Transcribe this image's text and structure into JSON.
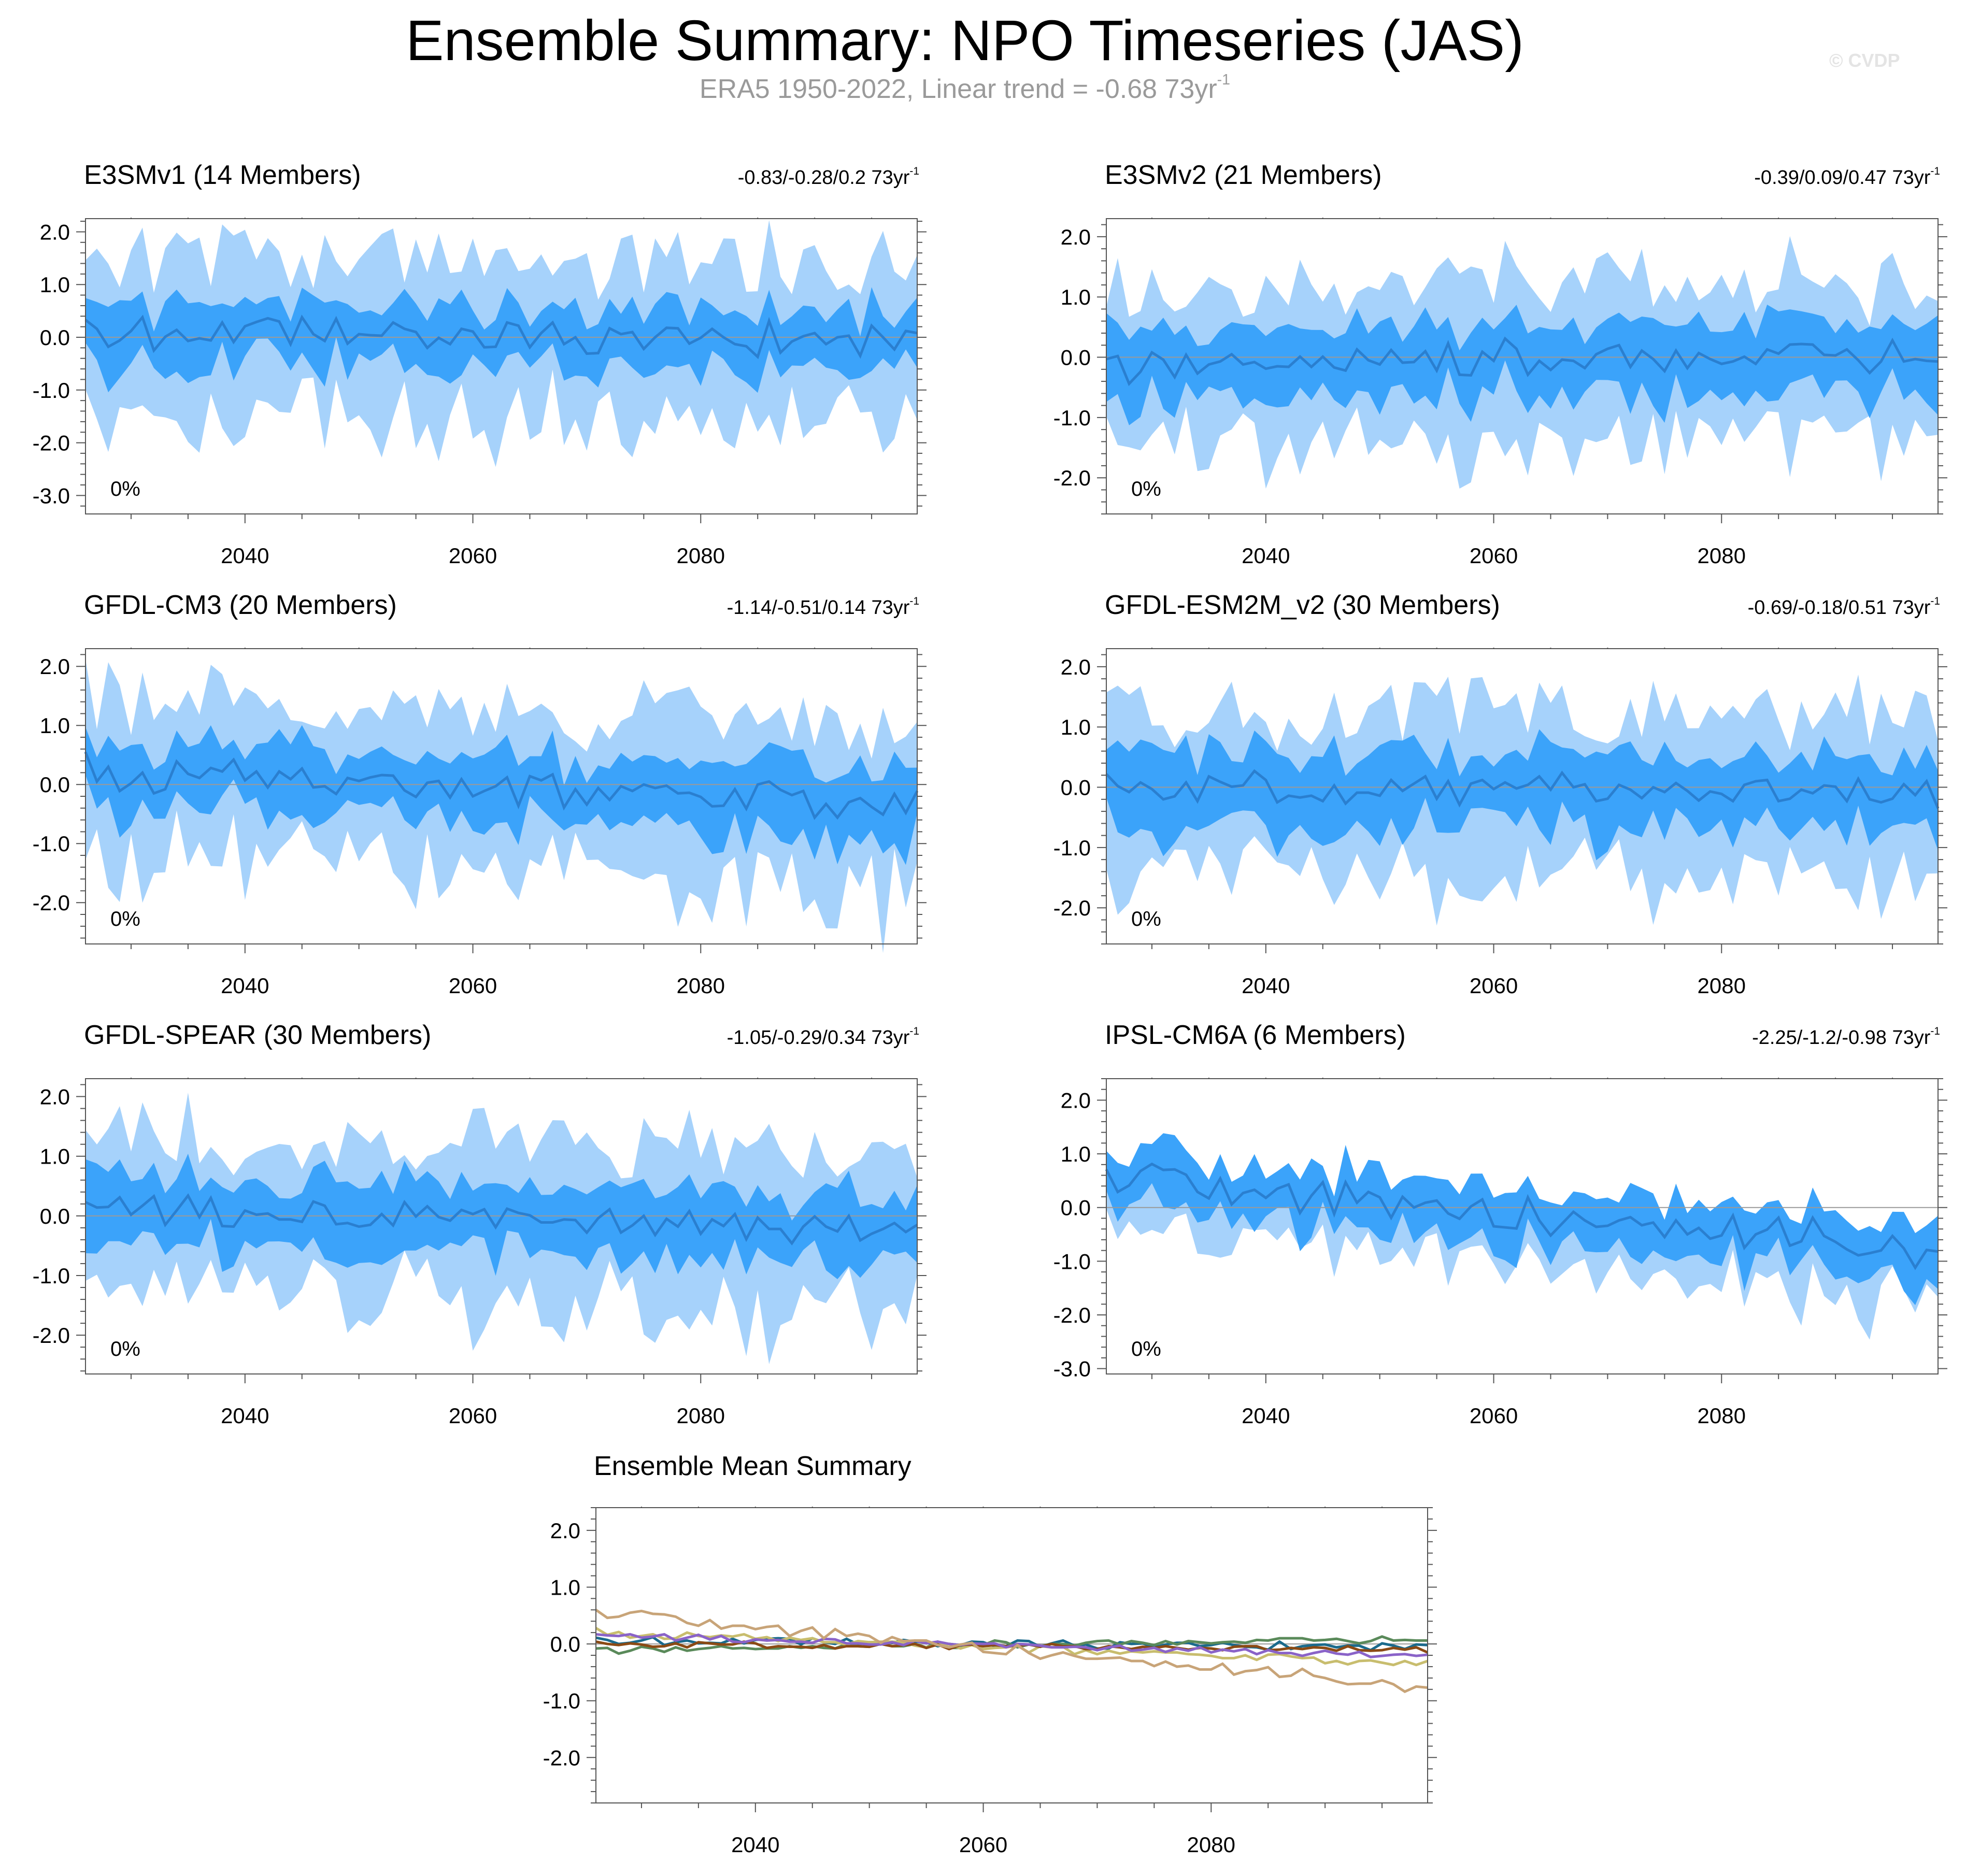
{
  "header": {
    "title": "Ensemble Summary: NPO Timeseries (JAS)",
    "subtitle_main": "ERA5 1950-2022, Linear trend = -0.68 73yr",
    "subtitle_sup": "-1",
    "watermark": "© CVDP"
  },
  "colors": {
    "outer_band": "#a6d2fb",
    "inner_band": "#3ba3fa",
    "mean_line": "#2a7fd0",
    "frame": "#555555"
  },
  "chart_data": [
    {
      "type": "area",
      "id": "e3smv1",
      "title": "E3SMv1 (14 Members)",
      "title_color": "#1a6a8c",
      "trend_text": "-0.83/-0.28/0.2 73yr",
      "trend_sup": "-1",
      "pct_label": "0%",
      "x_range": [
        2026,
        2099
      ],
      "ylim": [
        -3.35,
        2.25
      ],
      "yticks": [
        2.0,
        1.0,
        0.0,
        -1.0,
        -2.0,
        -3.0
      ],
      "ytick_labels": [
        "2.0",
        "1.0",
        "0.0",
        "-1.0",
        "-2.0",
        "-3.0"
      ],
      "xticks": [
        2040,
        2060,
        2080
      ],
      "xtick_labels": [
        "2040",
        "2060",
        "2080"
      ],
      "amp": 1.0,
      "seed": 11,
      "trend": [
        0.05,
        -0.05
      ],
      "spread": [
        0.55,
        1.45
      ]
    },
    {
      "type": "area",
      "id": "e3smv2",
      "title": "E3SMv2 (21 Members)",
      "title_color": "#5a8a5a",
      "trend_text": "-0.39/0.09/0.47 73yr",
      "trend_sup": "-1",
      "pct_label": "0%",
      "x_range": [
        2026,
        2099
      ],
      "ylim": [
        -2.6,
        2.3
      ],
      "yticks": [
        2.0,
        1.0,
        0.0,
        -1.0,
        -2.0
      ],
      "ytick_labels": [
        "2.0",
        "1.0",
        "0.0",
        "-1.0",
        "-2.0"
      ],
      "xticks": [
        2040,
        2060,
        2080
      ],
      "xtick_labels": [
        "2040",
        "2060",
        "2080"
      ],
      "amp": 0.85,
      "seed": 23,
      "trend": [
        -0.1,
        0.1
      ],
      "spread": [
        0.55,
        1.3
      ]
    },
    {
      "type": "area",
      "id": "gfdl-cm3",
      "title": "GFDL-CM3 (20 Members)",
      "title_color": "#c8bd6e",
      "trend_text": "-1.14/-0.51/0.14 73yr",
      "trend_sup": "-1",
      "pct_label": "0%",
      "x_range": [
        2026,
        2099
      ],
      "ylim": [
        -2.7,
        2.3
      ],
      "yticks": [
        2.0,
        1.0,
        0.0,
        -1.0,
        -2.0
      ],
      "ytick_labels": [
        "2.0",
        "1.0",
        "0.0",
        "-1.0",
        "-2.0"
      ],
      "xticks": [
        2040,
        2060,
        2080
      ],
      "xtick_labels": [
        "2040",
        "2060",
        "2080"
      ],
      "amp": 0.9,
      "seed": 37,
      "trend": [
        0.2,
        -0.35
      ],
      "spread": [
        0.55,
        1.3
      ]
    },
    {
      "type": "area",
      "id": "gfdl-esm2m",
      "title": "GFDL-ESM2M_v2 (30 Members)",
      "title_color": "#8b4a14",
      "trend_text": "-0.69/-0.18/0.51 73yr",
      "trend_sup": "-1",
      "pct_label": "0%",
      "x_range": [
        2026,
        2099
      ],
      "ylim": [
        -2.6,
        2.3
      ],
      "yticks": [
        2.0,
        1.0,
        0.0,
        -1.0,
        -2.0
      ],
      "ytick_labels": [
        "2.0",
        "1.0",
        "0.0",
        "-1.0",
        "-2.0"
      ],
      "xticks": [
        2040,
        2060,
        2080
      ],
      "xtick_labels": [
        "2040",
        "2060",
        "2080"
      ],
      "amp": 0.75,
      "seed": 41,
      "trend": [
        0.0,
        -0.1
      ],
      "spread": [
        0.6,
        1.3
      ]
    },
    {
      "type": "area",
      "id": "gfdl-spear",
      "title": "GFDL-SPEAR (30 Members)",
      "title_color": "#8a63c8",
      "trend_text": "-1.05/-0.29/0.34 73yr",
      "trend_sup": "-1",
      "pct_label": "0%",
      "x_range": [
        2026,
        2099
      ],
      "ylim": [
        -2.65,
        2.3
      ],
      "yticks": [
        2.0,
        1.0,
        0.0,
        -1.0,
        -2.0
      ],
      "ytick_labels": [
        "2.0",
        "1.0",
        "0.0",
        "-1.0",
        "-2.0"
      ],
      "xticks": [
        2040,
        2060,
        2080
      ],
      "xtick_labels": [
        "2040",
        "2060",
        "2080"
      ],
      "amp": 0.75,
      "seed": 53,
      "trend": [
        0.15,
        -0.2
      ],
      "spread": [
        0.55,
        1.3
      ]
    },
    {
      "type": "area",
      "id": "ipsl-cm6a",
      "title": "IPSL-CM6A (6 Members)",
      "title_color": "#c8a478",
      "trend_text": "-2.25/-1.2/-0.98 73yr",
      "trend_sup": "-1",
      "pct_label": "0%",
      "x_range": [
        2026,
        2099
      ],
      "ylim": [
        -3.1,
        2.4
      ],
      "yticks": [
        2.0,
        1.0,
        0.0,
        -1.0,
        -2.0,
        -3.0
      ],
      "ytick_labels": [
        "2.0",
        "1.0",
        "0.0",
        "-1.0",
        "-2.0",
        "-3.0"
      ],
      "xticks": [
        2040,
        2060,
        2080
      ],
      "xtick_labels": [
        "2040",
        "2060",
        "2080"
      ],
      "amp": 1.0,
      "seed": 67,
      "trend": [
        0.55,
        -0.75
      ],
      "spread": [
        0.5,
        0.9
      ],
      "outer_only_low": true
    },
    {
      "type": "line",
      "id": "ensemble-mean",
      "title": "Ensemble Mean Summary",
      "x_range": [
        2026,
        2099
      ],
      "ylim": [
        -2.8,
        2.4
      ],
      "yticks": [
        2.0,
        1.0,
        0.0,
        -1.0,
        -2.0
      ],
      "ytick_labels": [
        "2.0",
        "1.0",
        "0.0",
        "-1.0",
        "-2.0"
      ],
      "xticks": [
        2040,
        2060,
        2080
      ],
      "xtick_labels": [
        "2040",
        "2060",
        "2080"
      ],
      "series": [
        {
          "name": "E3SMv1",
          "color": "#1a6a8c",
          "amp": 0.22,
          "seed": 11,
          "trend": [
            0.05,
            -0.05
          ]
        },
        {
          "name": "E3SMv2",
          "color": "#5a8a5a",
          "amp": 0.18,
          "seed": 23,
          "trend": [
            -0.1,
            0.1
          ]
        },
        {
          "name": "GFDL-CM3",
          "color": "#c8bd6e",
          "amp": 0.2,
          "seed": 37,
          "trend": [
            0.2,
            -0.35
          ]
        },
        {
          "name": "GFDL-ESM2M_v2",
          "color": "#8b4a14",
          "amp": 0.15,
          "seed": 41,
          "trend": [
            0.0,
            -0.1
          ]
        },
        {
          "name": "GFDL-SPEAR",
          "color": "#8a63c8",
          "amp": 0.16,
          "seed": 53,
          "trend": [
            0.15,
            -0.2
          ]
        },
        {
          "name": "IPSL-CM6A",
          "color": "#c8a478",
          "amp": 0.3,
          "seed": 67,
          "trend": [
            0.55,
            -0.75
          ]
        }
      ]
    }
  ]
}
